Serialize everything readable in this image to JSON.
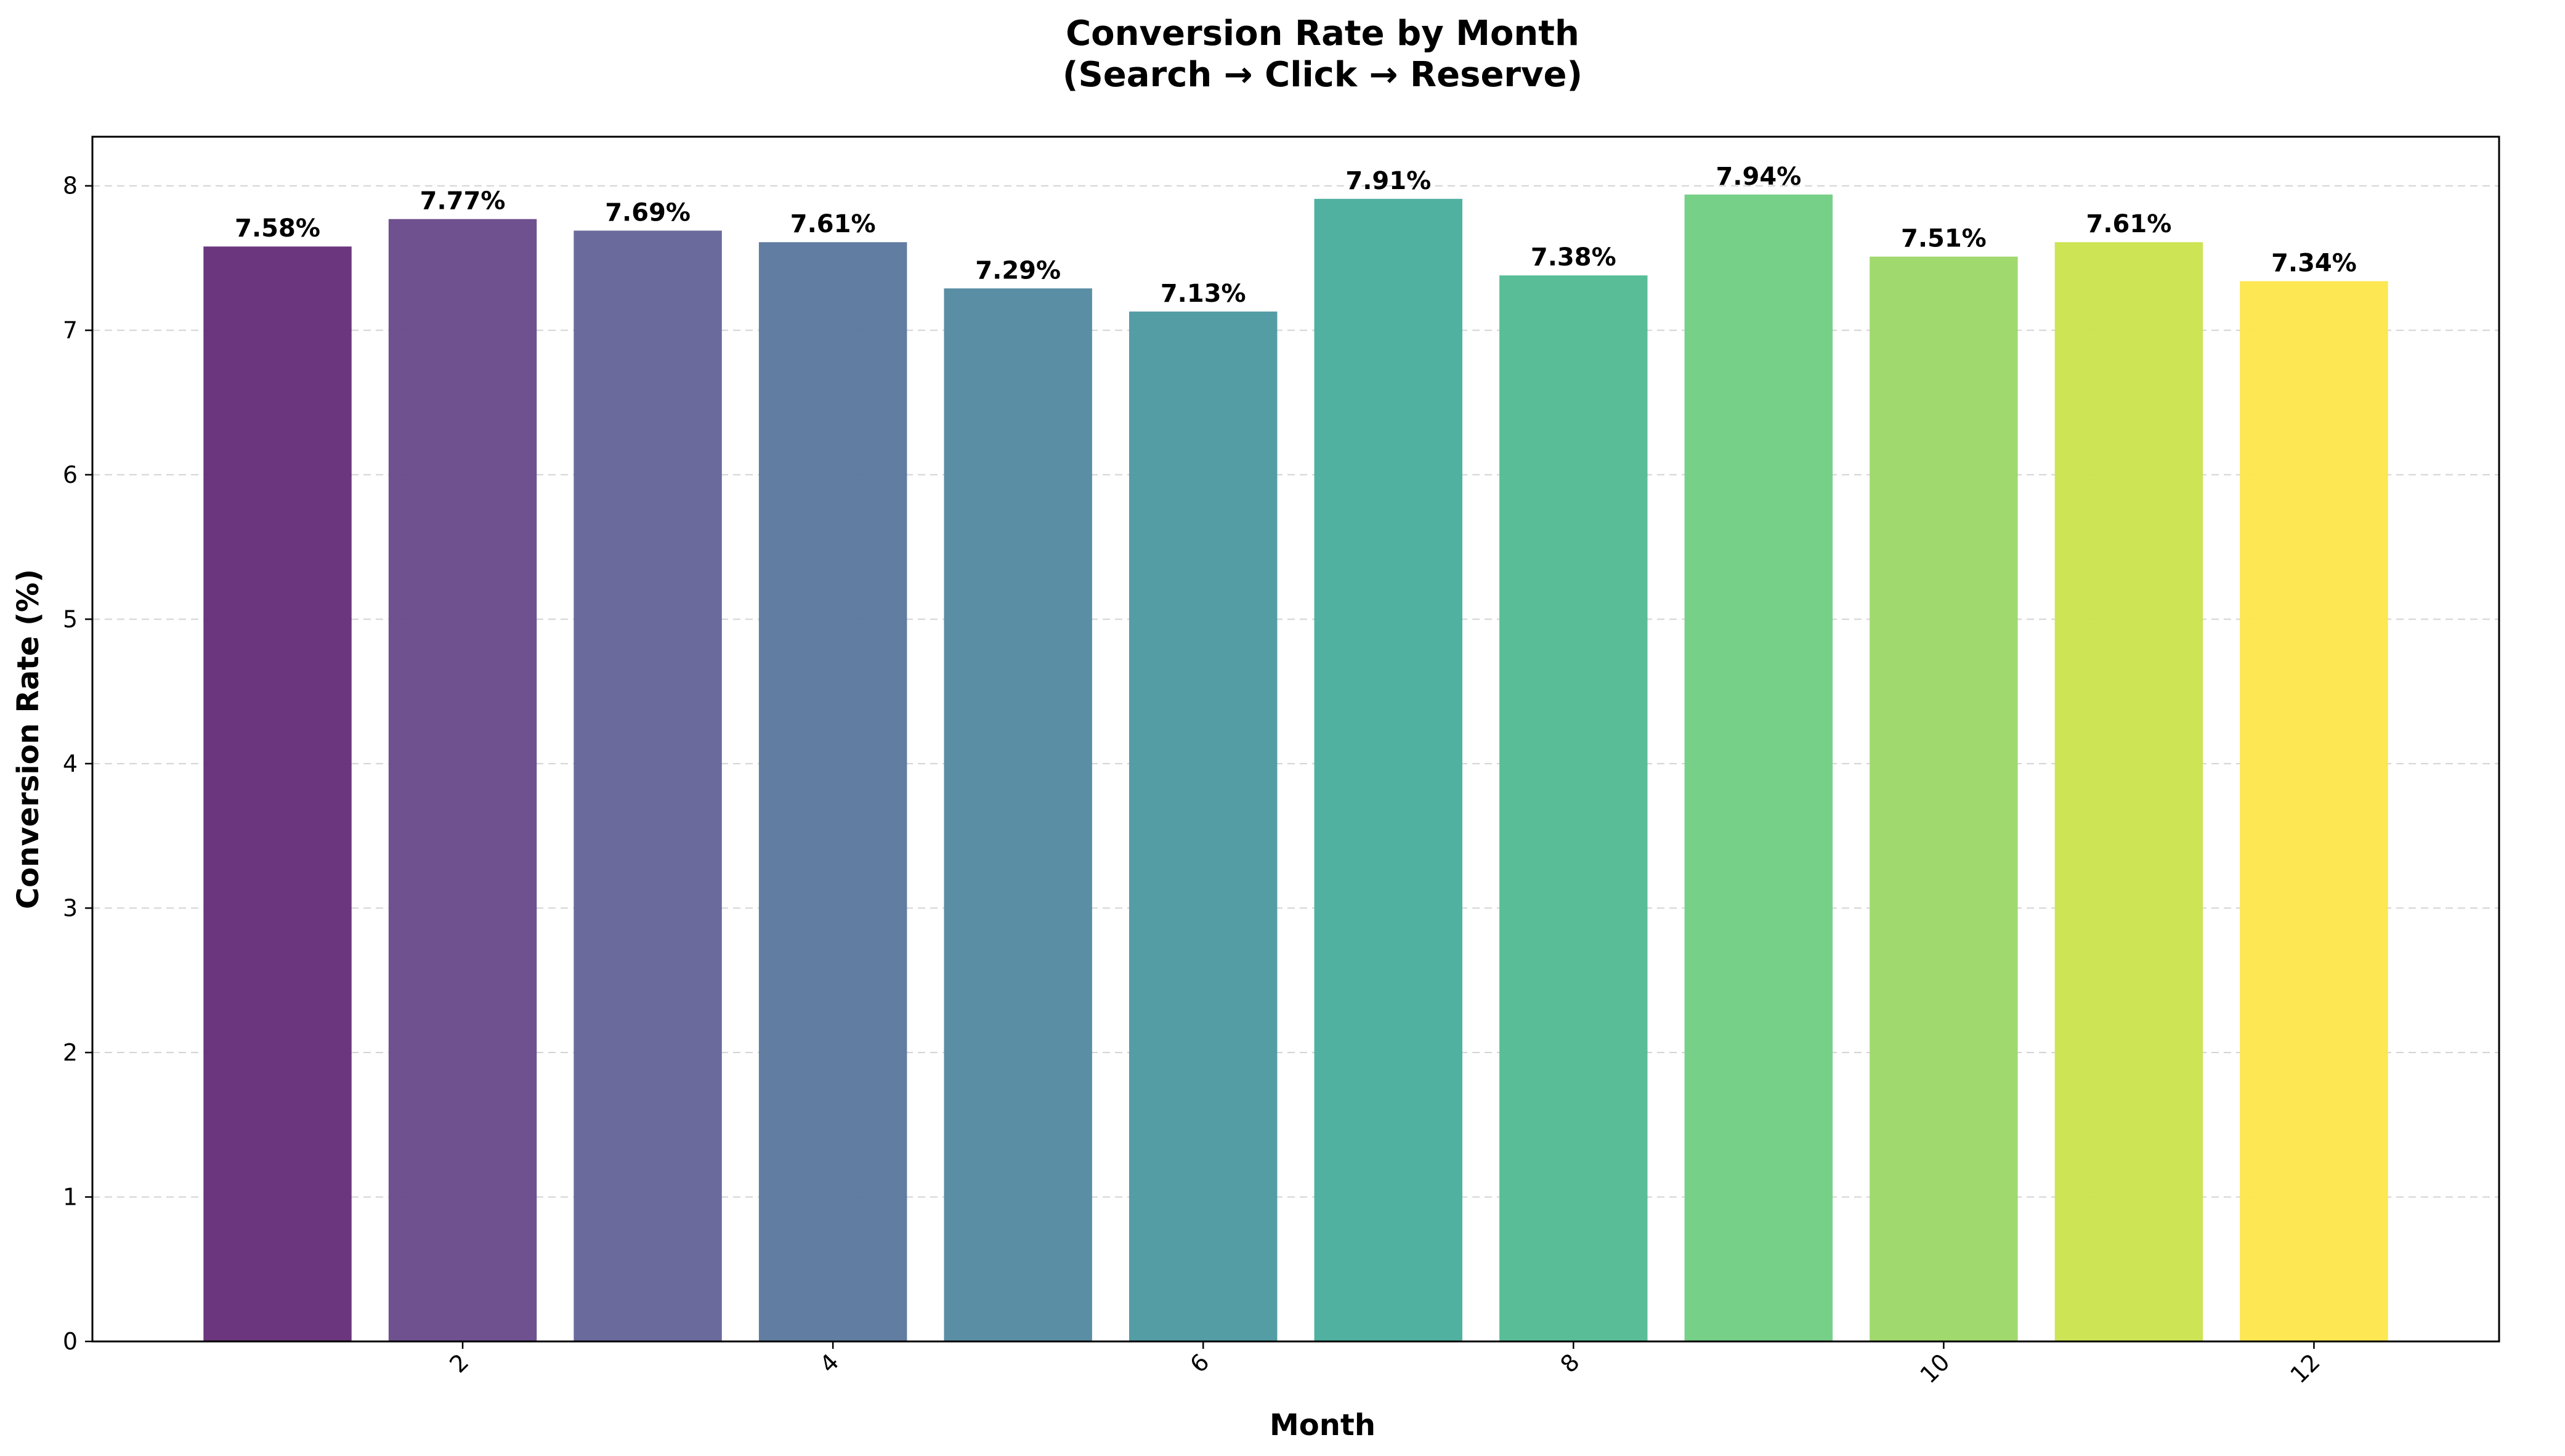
{
  "chart_data": {
    "type": "bar",
    "title": "Conversion Rate by Month",
    "subtitle": "(Search → Click → Reserve)",
    "xlabel": "Month",
    "ylabel": "Conversion Rate (%)",
    "categories": [
      1,
      2,
      3,
      4,
      5,
      6,
      7,
      8,
      9,
      10,
      11,
      12
    ],
    "values": [
      7.58,
      7.77,
      7.69,
      7.61,
      7.29,
      7.13,
      7.91,
      7.38,
      7.94,
      7.51,
      7.61,
      7.34
    ],
    "data_labels": [
      "7.58%",
      "7.77%",
      "7.69%",
      "7.61%",
      "7.29%",
      "7.13%",
      "7.91%",
      "7.38%",
      "7.94%",
      "7.51%",
      "7.61%",
      "7.34%"
    ],
    "colors": [
      "#68327a",
      "#6c4e8d",
      "#67679a",
      "#5e7aa0",
      "#578ca3",
      "#519ba3",
      "#4daf9f",
      "#56bd96",
      "#74cf85",
      "#9ed86b",
      "#cce352",
      "#fde74f"
    ],
    "xticks": [
      2,
      4,
      6,
      8,
      10,
      12
    ],
    "xtick_labels": [
      "2",
      "4",
      "6",
      "8",
      "10",
      "12"
    ],
    "xlim": [
      0,
      13
    ],
    "yticks": [
      0,
      1,
      2,
      3,
      4,
      5,
      6,
      7,
      8
    ],
    "ytick_labels": [
      "0",
      "1",
      "2",
      "3",
      "4",
      "5",
      "6",
      "7",
      "8"
    ],
    "ylim": [
      0,
      8.34
    ],
    "grid": "y-dashed",
    "legend": "none"
  }
}
